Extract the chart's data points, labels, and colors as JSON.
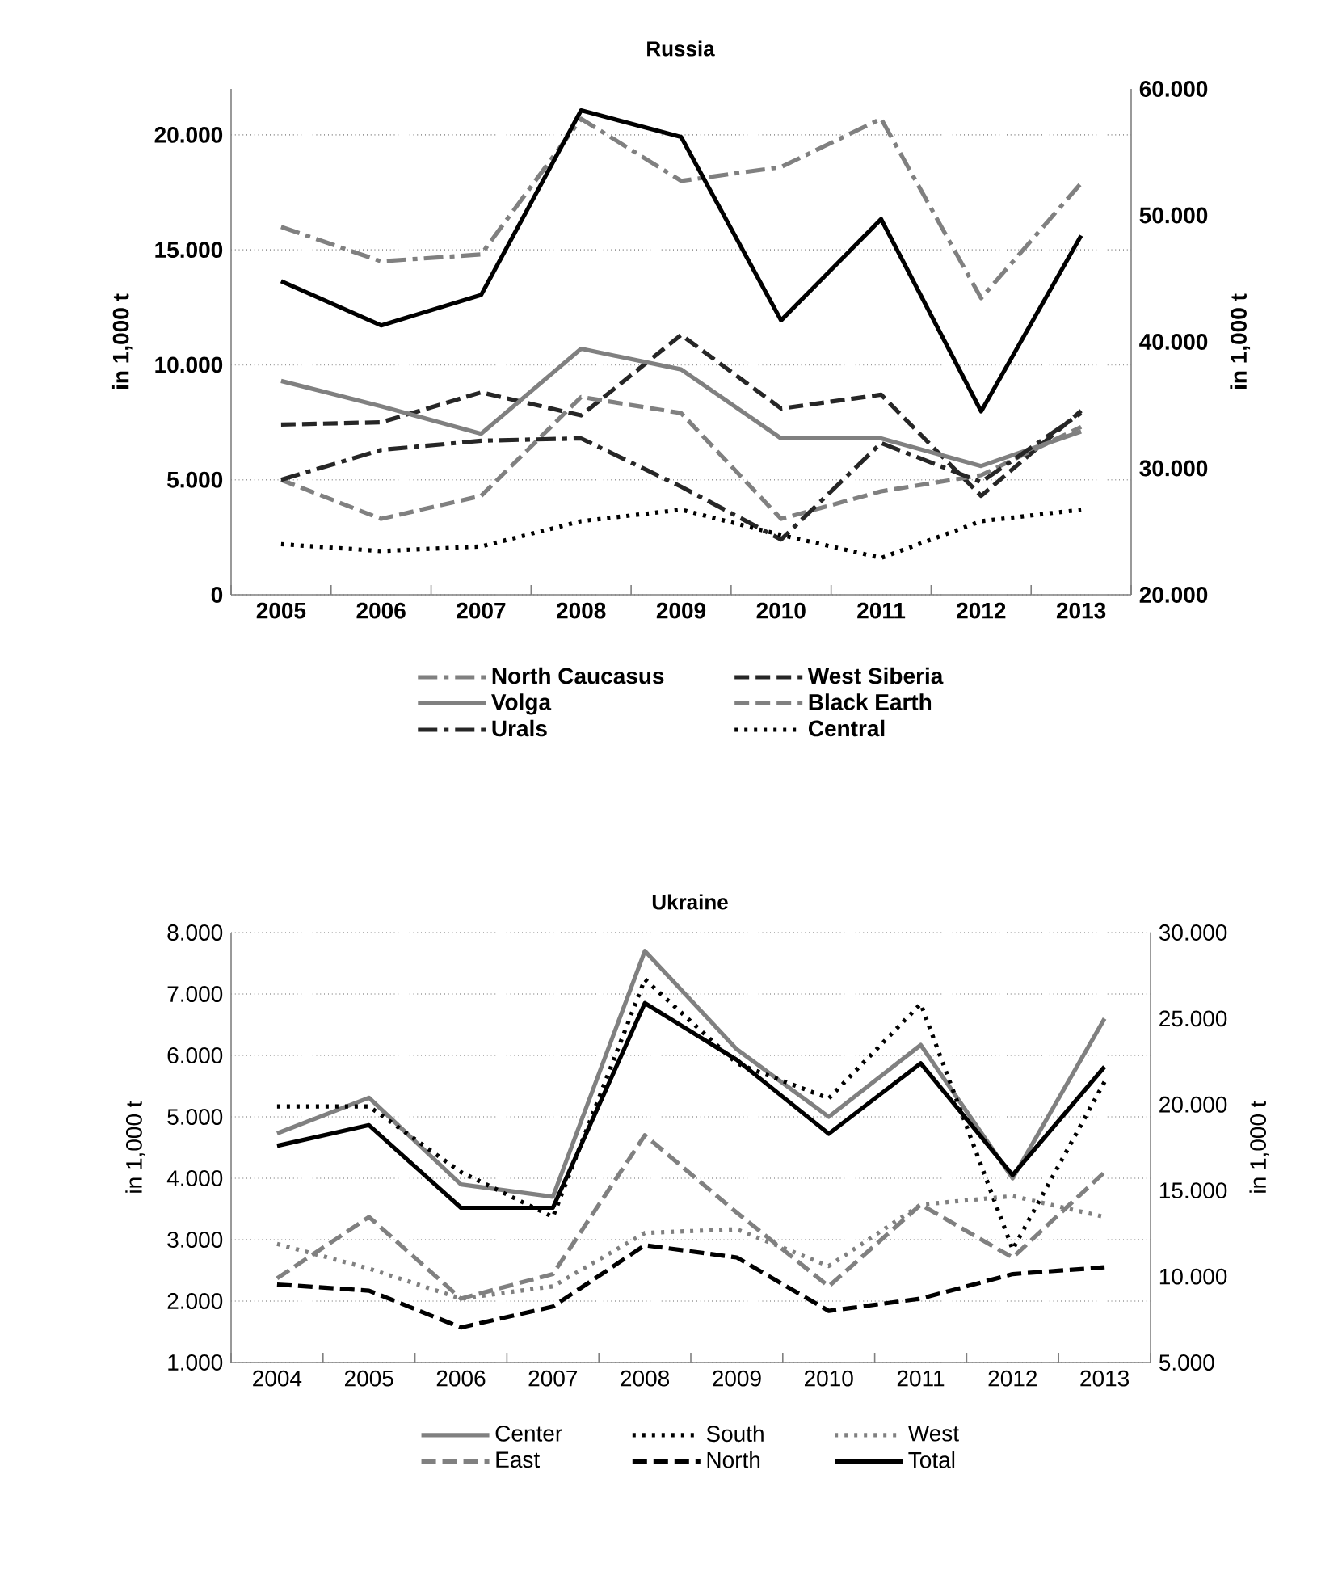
{
  "chart_data": [
    {
      "type": "line",
      "title": "Russia",
      "ylabel": "in 1,000 t",
      "y2label": "in 1,000 t",
      "categories": [
        "2005",
        "2006",
        "2007",
        "2008",
        "2009",
        "2010",
        "2011",
        "2012",
        "2013"
      ],
      "ylim": [
        0,
        22000
      ],
      "yticks": [
        0,
        {
          "value": 5000,
          "label": "5.000"
        },
        {
          "value": 10000,
          "label": "10.000"
        },
        {
          "value": 15000,
          "label": "15.000"
        },
        {
          "value": 20000,
          "label": "20.000"
        }
      ],
      "y2lim": [
        20000,
        60000
      ],
      "y2ticks": [
        {
          "value": 20000,
          "label": "20.000"
        },
        {
          "value": 30000,
          "label": "30.000"
        },
        {
          "value": 40000,
          "label": "40.000"
        },
        {
          "value": 50000,
          "label": "50.000"
        },
        {
          "value": 60000,
          "label": "60.000"
        }
      ],
      "grid": "y",
      "legend": "bottom",
      "series": [
        {
          "name": "North Caucasus",
          "color": "#808080",
          "line_style": "dashdot",
          "values": [
            16000,
            14500,
            14800,
            20700,
            18000,
            18600,
            20700,
            12900,
            17900
          ]
        },
        {
          "name": "West Siberia",
          "color": "#262626",
          "line_style": "dashed",
          "values": [
            7400,
            7500,
            8800,
            7800,
            11300,
            8100,
            8700,
            4300,
            8000
          ]
        },
        {
          "name": "Volga",
          "color": "#808080",
          "line_style": "solid",
          "values": [
            9300,
            8200,
            7000,
            10700,
            9800,
            6800,
            6800,
            5600,
            7100
          ]
        },
        {
          "name": "Black Earth",
          "color": "#808080",
          "line_style": "dashed",
          "values": [
            5000,
            3300,
            4300,
            8600,
            7900,
            3300,
            4500,
            5200,
            7300
          ]
        },
        {
          "name": "Urals",
          "color": "#262626",
          "line_style": "dashdot",
          "values": [
            5000,
            6300,
            6700,
            6800,
            4700,
            2400,
            6600,
            4900,
            7900
          ]
        },
        {
          "name": "Central",
          "color": "#000000",
          "line_style": "dotted",
          "values": [
            2200,
            1900,
            2100,
            3200,
            3700,
            2600,
            1600,
            3200,
            3700
          ]
        },
        {
          "color": "#000000",
          "line_style": "solid",
          "axis": "y2",
          "values": [
            44800,
            41300,
            43700,
            58300,
            56200,
            41700,
            49700,
            34500,
            48400
          ]
        }
      ]
    },
    {
      "type": "line",
      "title": "Ukraine",
      "ylabel": "in 1,000 t",
      "y2label": "in 1,000 t",
      "categories": [
        "2004",
        "2005",
        "2006",
        "2007",
        "2008",
        "2009",
        "2010",
        "2011",
        "2012",
        "2013"
      ],
      "ylim": [
        1000,
        8000
      ],
      "yticks": [
        {
          "value": 1000,
          "label": "1.000"
        },
        {
          "value": 2000,
          "label": "2.000"
        },
        {
          "value": 3000,
          "label": "3.000"
        },
        {
          "value": 4000,
          "label": "4.000"
        },
        {
          "value": 5000,
          "label": "5.000"
        },
        {
          "value": 6000,
          "label": "6.000"
        },
        {
          "value": 7000,
          "label": "7.000"
        },
        {
          "value": 8000,
          "label": "8.000"
        }
      ],
      "y2lim": [
        5000,
        30000
      ],
      "y2ticks": [
        {
          "value": 5000,
          "label": "5.000"
        },
        {
          "value": 10000,
          "label": "10.000"
        },
        {
          "value": 15000,
          "label": "15.000"
        },
        {
          "value": 20000,
          "label": "20.000"
        },
        {
          "value": 25000,
          "label": "25.000"
        },
        {
          "value": 30000,
          "label": "30.000"
        }
      ],
      "grid": "y",
      "legend": "bottom",
      "series": [
        {
          "name": "Center",
          "color": "#808080",
          "line_style": "solid",
          "values": [
            4730,
            5310,
            3900,
            3700,
            7700,
            6100,
            5000,
            6170,
            4000,
            6600
          ]
        },
        {
          "name": "South",
          "color": "#000000",
          "line_style": "dotted",
          "values": [
            5170,
            5170,
            4100,
            3370,
            7240,
            5870,
            5300,
            6840,
            2840,
            5570
          ]
        },
        {
          "name": "West",
          "color": "#808080",
          "line_style": "dotted",
          "values": [
            2930,
            2530,
            2040,
            2240,
            3110,
            3170,
            2570,
            3570,
            3710,
            3370
          ]
        },
        {
          "name": "East",
          "color": "#808080",
          "line_style": "dashed",
          "values": [
            2370,
            3370,
            2040,
            2440,
            4700,
            3440,
            2240,
            3570,
            2710,
            4100
          ]
        },
        {
          "name": "North",
          "color": "#000000",
          "line_style": "dashed",
          "values": [
            2270,
            2170,
            1570,
            1910,
            2910,
            2710,
            1840,
            2040,
            2440,
            2550
          ]
        },
        {
          "name": "Total",
          "color": "#000000",
          "line_style": "solid",
          "axis": "y2",
          "values": [
            17600,
            18800,
            14000,
            14000,
            25900,
            22600,
            18300,
            22400,
            15900,
            22200
          ]
        }
      ]
    }
  ]
}
